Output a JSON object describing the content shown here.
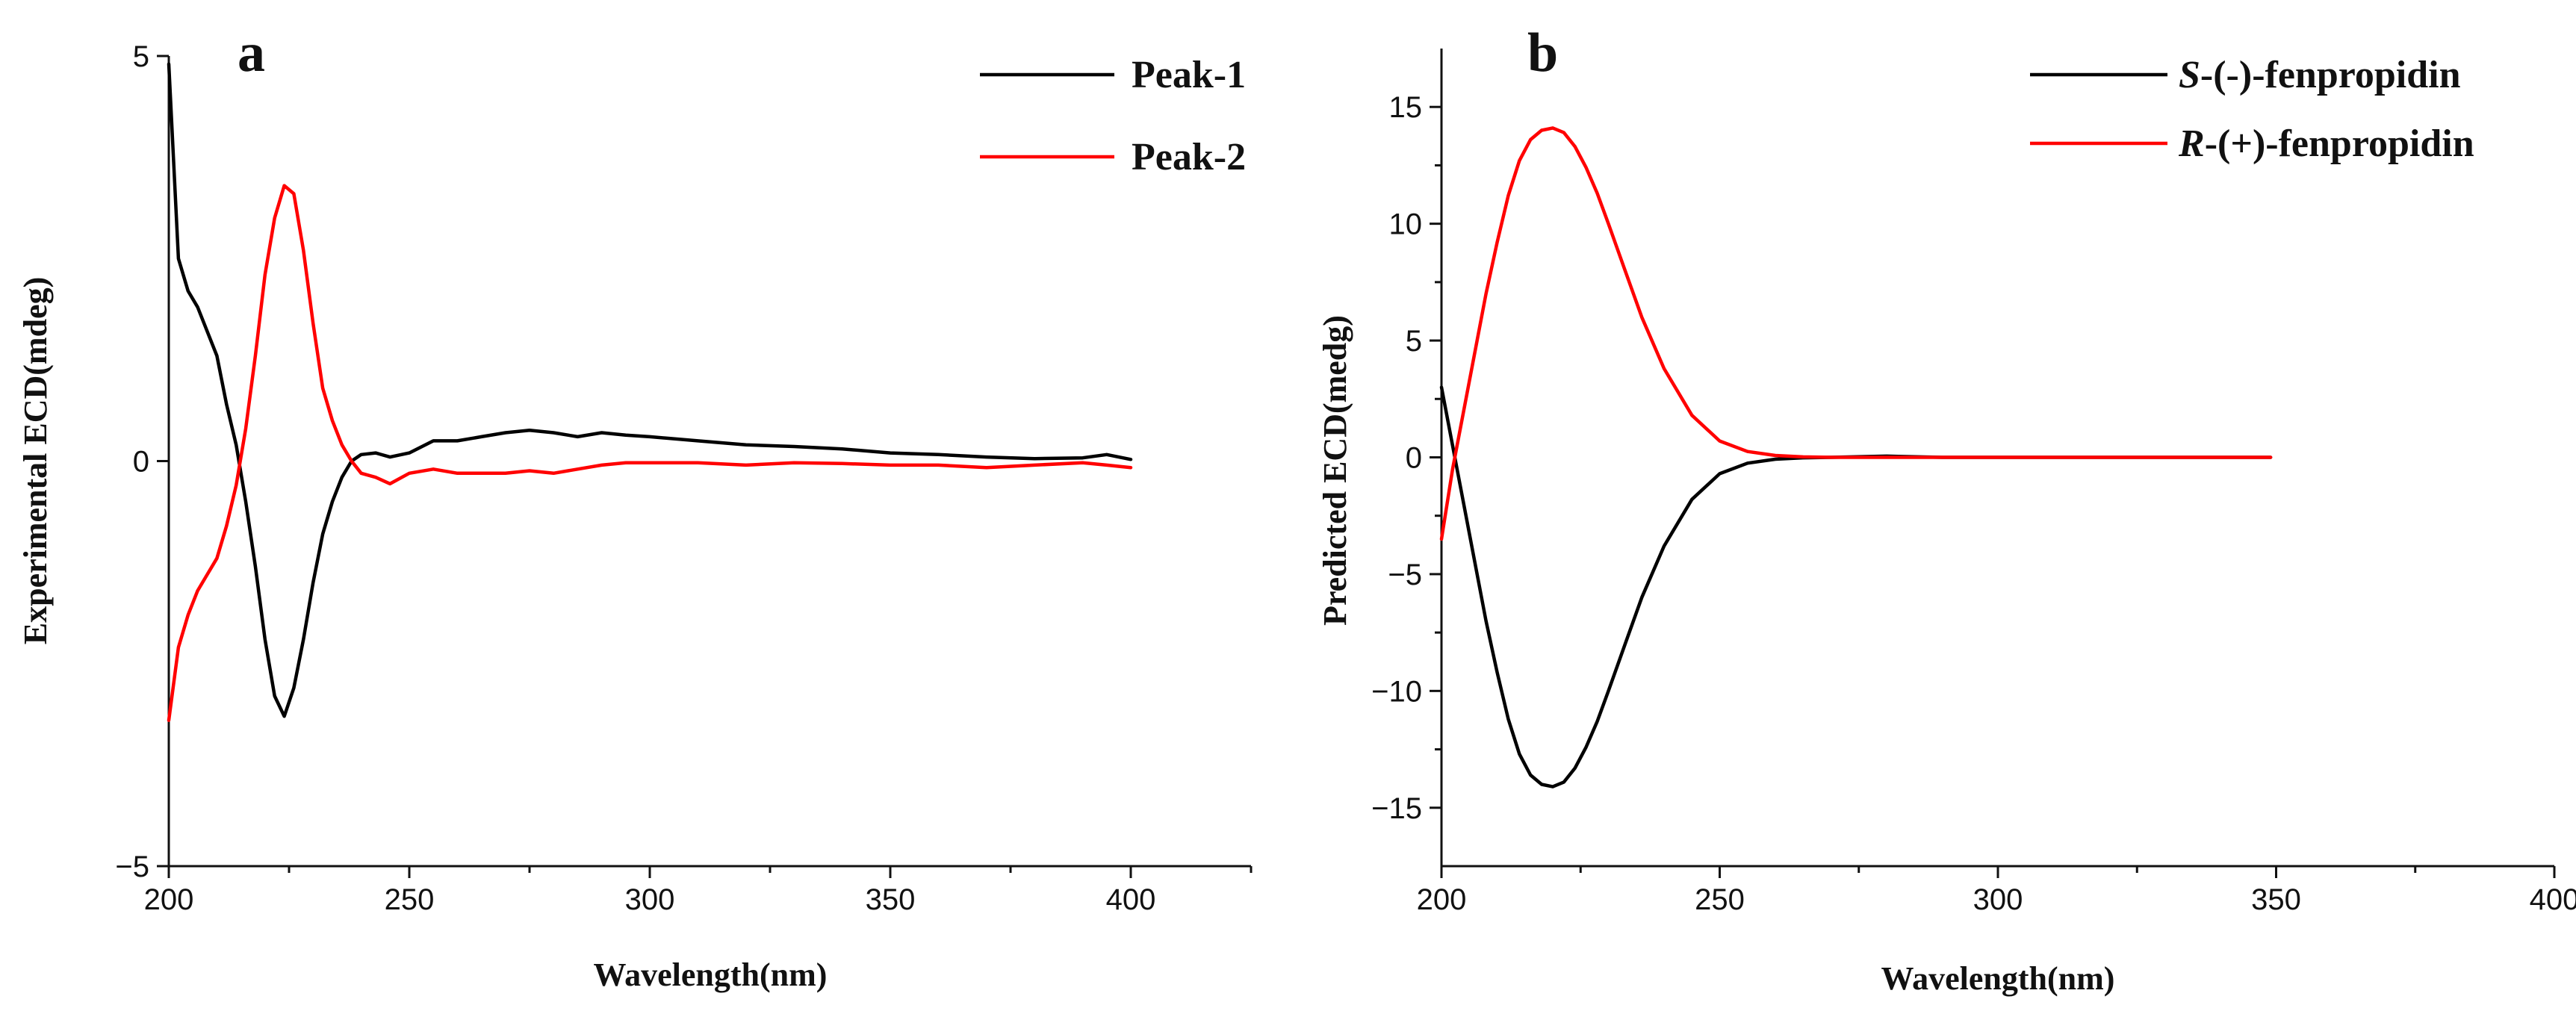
{
  "chart_data": [
    {
      "panel": "a",
      "type": "line",
      "xlabel": "Wavelength(nm)",
      "ylabel": "Experimental ECD(mdeg)",
      "xlim": [
        200,
        425
      ],
      "ylim": [
        -5,
        5
      ],
      "xticks": [
        200,
        250,
        300,
        350,
        400
      ],
      "yticks": [
        5,
        0,
        -5
      ],
      "yticklabels": [
        "5",
        "0",
        "−5"
      ],
      "legend_position": "top-right",
      "series": [
        {
          "name": "Peak-1",
          "color": "#000000",
          "x": [
            200,
            202,
            204,
            206,
            208,
            210,
            212,
            214,
            216,
            218,
            220,
            222,
            224,
            226,
            228,
            230,
            232,
            234,
            236,
            238,
            240,
            243,
            246,
            250,
            255,
            260,
            265,
            270,
            275,
            280,
            285,
            290,
            295,
            300,
            310,
            320,
            330,
            340,
            350,
            360,
            370,
            380,
            390,
            395,
            400
          ],
          "values": [
            4.9,
            2.5,
            2.1,
            1.9,
            1.6,
            1.3,
            0.7,
            0.2,
            -0.5,
            -1.3,
            -2.2,
            -2.9,
            -3.15,
            -2.8,
            -2.2,
            -1.5,
            -0.9,
            -0.5,
            -0.2,
            0.0,
            0.08,
            0.1,
            0.05,
            0.1,
            0.25,
            0.25,
            0.3,
            0.35,
            0.38,
            0.35,
            0.3,
            0.35,
            0.32,
            0.3,
            0.25,
            0.2,
            0.18,
            0.15,
            0.1,
            0.08,
            0.05,
            0.03,
            0.04,
            0.08,
            0.02
          ]
        },
        {
          "name": "Peak-2",
          "color": "#ff0000",
          "x": [
            200,
            202,
            204,
            206,
            208,
            210,
            212,
            214,
            216,
            218,
            220,
            222,
            224,
            226,
            228,
            230,
            232,
            234,
            236,
            238,
            240,
            243,
            246,
            250,
            255,
            260,
            265,
            270,
            275,
            280,
            285,
            290,
            295,
            300,
            310,
            320,
            330,
            340,
            350,
            360,
            370,
            380,
            390,
            395,
            400
          ],
          "values": [
            -3.2,
            -2.3,
            -1.9,
            -1.6,
            -1.4,
            -1.2,
            -0.8,
            -0.3,
            0.4,
            1.3,
            2.3,
            3.0,
            3.4,
            3.3,
            2.6,
            1.7,
            0.9,
            0.5,
            0.2,
            0.0,
            -0.15,
            -0.2,
            -0.28,
            -0.15,
            -0.1,
            -0.15,
            -0.15,
            -0.15,
            -0.12,
            -0.15,
            -0.1,
            -0.05,
            -0.02,
            -0.02,
            -0.02,
            -0.05,
            -0.02,
            -0.03,
            -0.05,
            -0.05,
            -0.08,
            -0.05,
            -0.02,
            -0.05,
            -0.08
          ]
        }
      ]
    },
    {
      "panel": "b",
      "type": "line",
      "xlabel": "Wavelength(nm)",
      "ylabel": "Predicted ECD(medg)",
      "xlim": [
        200,
        400
      ],
      "ylim": [
        -17.5,
        17.5
      ],
      "xticks": [
        200,
        250,
        300,
        350,
        400
      ],
      "yticks": [
        15,
        10,
        5,
        0,
        -5,
        -10,
        -15
      ],
      "yticklabels": [
        "15",
        "10",
        "5",
        "0",
        "−5",
        "−10",
        "−15"
      ],
      "legend_position": "top-right",
      "series": [
        {
          "name_italic": "S",
          "name_rest": "-(-)-fenpropidin",
          "color": "#000000",
          "x": [
            200,
            202,
            204,
            206,
            208,
            210,
            212,
            214,
            216,
            218,
            220,
            222,
            224,
            226,
            228,
            230,
            233,
            236,
            240,
            245,
            250,
            255,
            260,
            265,
            270,
            280,
            290,
            300,
            320,
            349
          ],
          "values": [
            3.0,
            0.5,
            -2.0,
            -4.5,
            -7.0,
            -9.2,
            -11.2,
            -12.7,
            -13.6,
            -14.0,
            -14.1,
            -13.9,
            -13.3,
            -12.4,
            -11.3,
            -10.0,
            -8.0,
            -6.0,
            -3.8,
            -1.8,
            -0.7,
            -0.25,
            -0.08,
            -0.02,
            0.0,
            0.05,
            0.0,
            0.0,
            0.0,
            0.0
          ]
        },
        {
          "name_italic": "R",
          "name_rest": "-(+)-fenpropidin",
          "color": "#ff0000",
          "x": [
            200,
            202,
            204,
            206,
            208,
            210,
            212,
            214,
            216,
            218,
            220,
            222,
            224,
            226,
            228,
            230,
            233,
            236,
            240,
            245,
            250,
            255,
            260,
            265,
            270,
            280,
            290,
            300,
            320,
            349
          ],
          "values": [
            -3.5,
            -0.5,
            2.0,
            4.5,
            7.0,
            9.2,
            11.2,
            12.7,
            13.6,
            14.0,
            14.1,
            13.9,
            13.3,
            12.4,
            11.3,
            10.0,
            8.0,
            6.0,
            3.8,
            1.8,
            0.7,
            0.25,
            0.08,
            0.02,
            0.0,
            0.0,
            0.0,
            0.0,
            0.0,
            0.0
          ]
        }
      ]
    }
  ]
}
